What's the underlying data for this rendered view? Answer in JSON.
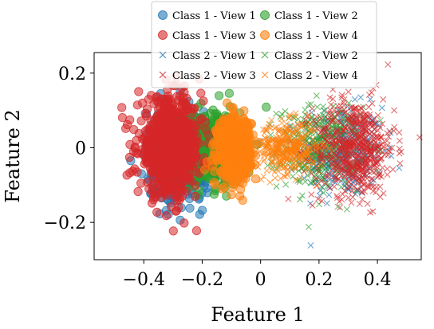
{
  "chart_data": {
    "type": "scatter",
    "title": "",
    "xlabel": "Feature 1",
    "ylabel": "Feature 2",
    "xlim": [
      -0.57,
      0.55
    ],
    "ylim": [
      -0.3,
      0.255
    ],
    "xticks": [
      -0.4,
      -0.2,
      0,
      0.2,
      0.4
    ],
    "xtick_labels": [
      "−0.4",
      "−0.2",
      "0",
      "0.2",
      "0.4"
    ],
    "yticks": [
      -0.2,
      0,
      0.2
    ],
    "ytick_labels": [
      "−0.2",
      "0",
      "0.2"
    ],
    "grid": false,
    "legend_position": "top-center",
    "series": [
      {
        "name": "Class 1 - View 1",
        "marker": "circle",
        "color": "#1f77b4",
        "center": [
          -0.28,
          -0.02
        ],
        "spread": [
          0.055,
          0.06
        ],
        "count": 450
      },
      {
        "name": "Class 1 - View 2",
        "marker": "circle",
        "color": "#2ca02c",
        "center": [
          -0.18,
          0.0
        ],
        "spread": [
          0.055,
          0.05
        ],
        "count": 400
      },
      {
        "name": "Class 1 - View 3",
        "marker": "circle",
        "color": "#d62728",
        "center": [
          -0.31,
          0.0
        ],
        "spread": [
          0.055,
          0.065
        ],
        "count": 700
      },
      {
        "name": "Class 1 - View 4",
        "marker": "circle",
        "color": "#ff7f0e",
        "center": [
          -0.09,
          0.0
        ],
        "spread": [
          0.028,
          0.04
        ],
        "count": 600
      },
      {
        "name": "Class 2 - View 1",
        "marker": "x",
        "color": "#1f77b4",
        "center": [
          0.28,
          -0.01
        ],
        "spread": [
          0.07,
          0.06
        ],
        "count": 350
      },
      {
        "name": "Class 2 - View 2",
        "marker": "x",
        "color": "#2ca02c",
        "center": [
          0.2,
          0.0
        ],
        "spread": [
          0.07,
          0.055
        ],
        "count": 350
      },
      {
        "name": "Class 2 - View 3",
        "marker": "x",
        "color": "#d62728",
        "center": [
          0.32,
          0.0
        ],
        "spread": [
          0.07,
          0.065
        ],
        "count": 600
      },
      {
        "name": "Class 2 - View 4",
        "marker": "x",
        "color": "#ff7f0e",
        "center": [
          0.09,
          0.0
        ],
        "spread": [
          0.05,
          0.035
        ],
        "count": 350
      }
    ]
  }
}
